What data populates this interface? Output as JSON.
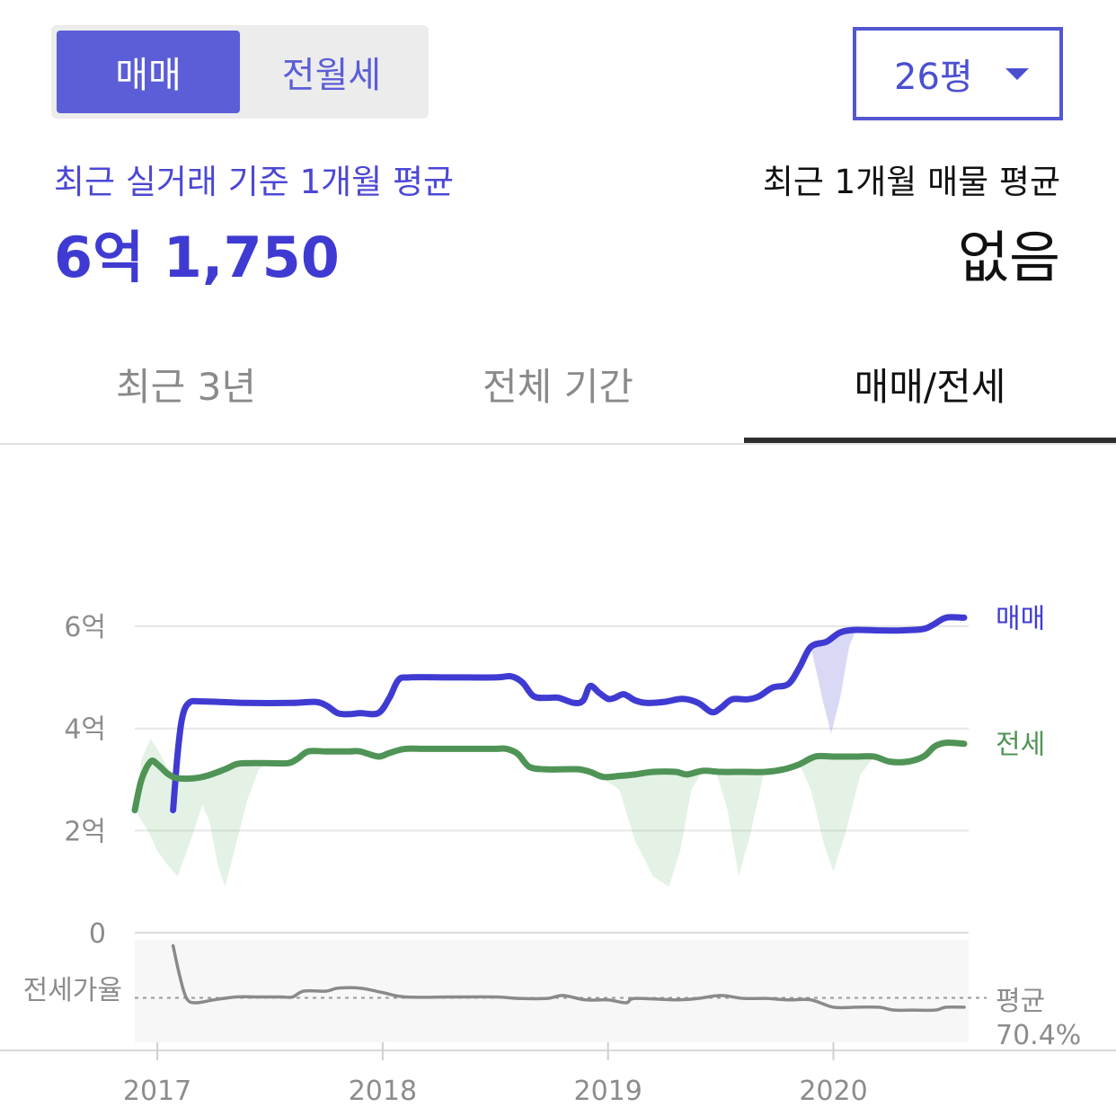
{
  "header": {
    "trade_tab": "매매",
    "rent_tab": "전월세",
    "size_selector": "26평"
  },
  "summary": {
    "left_label": "최근 실거래 기준 1개월 평균",
    "left_value": "6억 1,750",
    "right_label": "최근 1개월 매물 평균",
    "right_value": "없음"
  },
  "tabs": [
    "최근 3년",
    "전체 기간",
    "매매/전세"
  ],
  "colors": {
    "sale": "#3f3bd2",
    "jeonse": "#4f9456",
    "ratio": "#8a8a8a",
    "accent": "#5b5ed6"
  },
  "chart_data": {
    "type": "line",
    "y_unit": "억",
    "ylim": [
      0,
      6.3
    ],
    "y_ticks": [
      {
        "value": 0,
        "label": "0"
      },
      {
        "value": 2,
        "label": "2억"
      },
      {
        "value": 4,
        "label": "4억"
      },
      {
        "value": 6,
        "label": "6억"
      }
    ],
    "x_ticks": [
      {
        "value": 2017.0,
        "label": "2017"
      },
      {
        "value": 2018.0,
        "label": "2018"
      },
      {
        "value": 2019.0,
        "label": "2019"
      },
      {
        "value": 2020.0,
        "label": "2020"
      }
    ],
    "xlim": [
      2016.9,
      2020.6
    ],
    "grid": true,
    "series": [
      {
        "name": "매매",
        "points": [
          [
            2017.07,
            2.4
          ],
          [
            2017.09,
            3.5
          ],
          [
            2017.11,
            4.2
          ],
          [
            2017.14,
            4.5
          ],
          [
            2017.2,
            4.53
          ],
          [
            2017.4,
            4.5
          ],
          [
            2017.6,
            4.5
          ],
          [
            2017.7,
            4.52
          ],
          [
            2017.75,
            4.45
          ],
          [
            2017.8,
            4.3
          ],
          [
            2017.85,
            4.28
          ],
          [
            2017.9,
            4.3
          ],
          [
            2017.98,
            4.3
          ],
          [
            2018.03,
            4.6
          ],
          [
            2018.07,
            4.95
          ],
          [
            2018.12,
            5.0
          ],
          [
            2018.3,
            5.0
          ],
          [
            2018.5,
            5.0
          ],
          [
            2018.57,
            5.02
          ],
          [
            2018.62,
            4.9
          ],
          [
            2018.67,
            4.63
          ],
          [
            2018.73,
            4.6
          ],
          [
            2018.78,
            4.6
          ],
          [
            2018.85,
            4.5
          ],
          [
            2018.89,
            4.55
          ],
          [
            2018.92,
            4.83
          ],
          [
            2018.96,
            4.7
          ],
          [
            2019.0,
            4.58
          ],
          [
            2019.03,
            4.6
          ],
          [
            2019.07,
            4.67
          ],
          [
            2019.12,
            4.55
          ],
          [
            2019.17,
            4.5
          ],
          [
            2019.25,
            4.52
          ],
          [
            2019.33,
            4.58
          ],
          [
            2019.4,
            4.5
          ],
          [
            2019.46,
            4.32
          ],
          [
            2019.5,
            4.4
          ],
          [
            2019.55,
            4.57
          ],
          [
            2019.62,
            4.57
          ],
          [
            2019.67,
            4.63
          ],
          [
            2019.73,
            4.8
          ],
          [
            2019.8,
            4.87
          ],
          [
            2019.85,
            5.2
          ],
          [
            2019.9,
            5.6
          ],
          [
            2019.97,
            5.7
          ],
          [
            2020.03,
            5.88
          ],
          [
            2020.1,
            5.93
          ],
          [
            2020.2,
            5.92
          ],
          [
            2020.3,
            5.92
          ],
          [
            2020.4,
            5.95
          ],
          [
            2020.45,
            6.05
          ],
          [
            2020.5,
            6.17
          ],
          [
            2020.58,
            6.17
          ]
        ],
        "band": [
          [
            2019.85,
            5.2,
            5.2
          ],
          [
            2019.9,
            5.6,
            5.6
          ],
          [
            2019.95,
            5.7,
            4.6
          ],
          [
            2019.99,
            5.8,
            3.9
          ],
          [
            2020.03,
            5.88,
            4.6
          ],
          [
            2020.07,
            5.93,
            5.6
          ],
          [
            2020.1,
            5.93,
            5.93
          ]
        ]
      },
      {
        "name": "전세",
        "points": [
          [
            2016.9,
            2.4
          ],
          [
            2016.93,
            3.0
          ],
          [
            2016.97,
            3.35
          ],
          [
            2017.0,
            3.3
          ],
          [
            2017.05,
            3.1
          ],
          [
            2017.1,
            3.02
          ],
          [
            2017.2,
            3.05
          ],
          [
            2017.3,
            3.2
          ],
          [
            2017.35,
            3.3
          ],
          [
            2017.4,
            3.32
          ],
          [
            2017.5,
            3.32
          ],
          [
            2017.58,
            3.32
          ],
          [
            2017.62,
            3.4
          ],
          [
            2017.67,
            3.55
          ],
          [
            2017.75,
            3.55
          ],
          [
            2017.85,
            3.55
          ],
          [
            2017.9,
            3.55
          ],
          [
            2017.98,
            3.45
          ],
          [
            2018.03,
            3.52
          ],
          [
            2018.1,
            3.6
          ],
          [
            2018.2,
            3.6
          ],
          [
            2018.4,
            3.6
          ],
          [
            2018.5,
            3.6
          ],
          [
            2018.55,
            3.6
          ],
          [
            2018.6,
            3.5
          ],
          [
            2018.65,
            3.25
          ],
          [
            2018.72,
            3.2
          ],
          [
            2018.8,
            3.2
          ],
          [
            2018.87,
            3.2
          ],
          [
            2018.92,
            3.15
          ],
          [
            2018.98,
            3.05
          ],
          [
            2019.05,
            3.07
          ],
          [
            2019.12,
            3.1
          ],
          [
            2019.2,
            3.15
          ],
          [
            2019.3,
            3.15
          ],
          [
            2019.35,
            3.1
          ],
          [
            2019.42,
            3.17
          ],
          [
            2019.5,
            3.15
          ],
          [
            2019.6,
            3.15
          ],
          [
            2019.7,
            3.15
          ],
          [
            2019.78,
            3.2
          ],
          [
            2019.85,
            3.3
          ],
          [
            2019.92,
            3.45
          ],
          [
            2020.0,
            3.45
          ],
          [
            2020.1,
            3.45
          ],
          [
            2020.18,
            3.45
          ],
          [
            2020.25,
            3.35
          ],
          [
            2020.33,
            3.35
          ],
          [
            2020.4,
            3.45
          ],
          [
            2020.45,
            3.65
          ],
          [
            2020.5,
            3.72
          ],
          [
            2020.58,
            3.7
          ]
        ],
        "band": [
          [
            2016.9,
            2.4,
            2.4
          ],
          [
            2016.93,
            3.4,
            2.2
          ],
          [
            2016.97,
            3.8,
            1.9
          ],
          [
            2017.0,
            3.6,
            1.6
          ],
          [
            2017.05,
            3.2,
            1.3
          ],
          [
            2017.09,
            3.05,
            1.1
          ],
          [
            2017.14,
            3.0,
            1.7
          ],
          [
            2017.2,
            3.1,
            2.5
          ],
          [
            2017.23,
            3.15,
            2.2
          ],
          [
            2017.27,
            3.2,
            1.3
          ],
          [
            2017.3,
            3.25,
            0.9
          ],
          [
            2017.33,
            3.3,
            1.4
          ],
          [
            2017.4,
            3.32,
            2.6
          ],
          [
            2017.45,
            3.32,
            3.2
          ],
          [
            2017.5,
            3.32,
            3.32
          ],
          [
            2018.95,
            3.1,
            3.1
          ],
          [
            2019.05,
            3.07,
            2.8
          ],
          [
            2019.12,
            3.1,
            1.8
          ],
          [
            2019.2,
            3.15,
            1.1
          ],
          [
            2019.27,
            3.15,
            0.9
          ],
          [
            2019.32,
            3.12,
            1.6
          ],
          [
            2019.37,
            3.1,
            2.8
          ],
          [
            2019.42,
            3.17,
            3.17
          ],
          [
            2019.48,
            3.15,
            3.15
          ],
          [
            2019.53,
            3.15,
            2.4
          ],
          [
            2019.58,
            3.15,
            1.1
          ],
          [
            2019.63,
            3.15,
            1.9
          ],
          [
            2019.69,
            3.15,
            3.1
          ],
          [
            2019.7,
            3.15,
            3.15
          ],
          [
            2019.85,
            3.3,
            3.3
          ],
          [
            2019.9,
            3.4,
            2.8
          ],
          [
            2019.96,
            3.45,
            1.7
          ],
          [
            2020.0,
            3.45,
            1.2
          ],
          [
            2020.05,
            3.45,
            1.9
          ],
          [
            2020.12,
            3.45,
            3.1
          ],
          [
            2020.18,
            3.45,
            3.45
          ]
        ]
      }
    ],
    "ratio": {
      "label": "전세가율",
      "average_label": "평균",
      "average_value": "70.4%",
      "average": 70.4,
      "ylim": [
        40,
        110
      ],
      "points": [
        [
          2017.07,
          106
        ],
        [
          2017.1,
          85
        ],
        [
          2017.13,
          70
        ],
        [
          2017.17,
          67
        ],
        [
          2017.25,
          69
        ],
        [
          2017.35,
          71
        ],
        [
          2017.45,
          71
        ],
        [
          2017.55,
          71
        ],
        [
          2017.6,
          71
        ],
        [
          2017.65,
          75
        ],
        [
          2017.75,
          75
        ],
        [
          2017.8,
          77
        ],
        [
          2017.9,
          77
        ],
        [
          2018.0,
          74
        ],
        [
          2018.1,
          71
        ],
        [
          2018.3,
          71
        ],
        [
          2018.5,
          71
        ],
        [
          2018.6,
          70
        ],
        [
          2018.73,
          70
        ],
        [
          2018.8,
          72
        ],
        [
          2018.9,
          69
        ],
        [
          2019.0,
          69
        ],
        [
          2019.08,
          67
        ],
        [
          2019.12,
          70
        ],
        [
          2019.3,
          69
        ],
        [
          2019.4,
          70
        ],
        [
          2019.5,
          72
        ],
        [
          2019.6,
          70
        ],
        [
          2019.7,
          70
        ],
        [
          2019.8,
          69
        ],
        [
          2019.9,
          69
        ],
        [
          2020.0,
          64
        ],
        [
          2020.1,
          64
        ],
        [
          2020.2,
          64
        ],
        [
          2020.27,
          62
        ],
        [
          2020.35,
          62
        ],
        [
          2020.45,
          62
        ],
        [
          2020.5,
          64
        ],
        [
          2020.58,
          64
        ]
      ]
    }
  }
}
